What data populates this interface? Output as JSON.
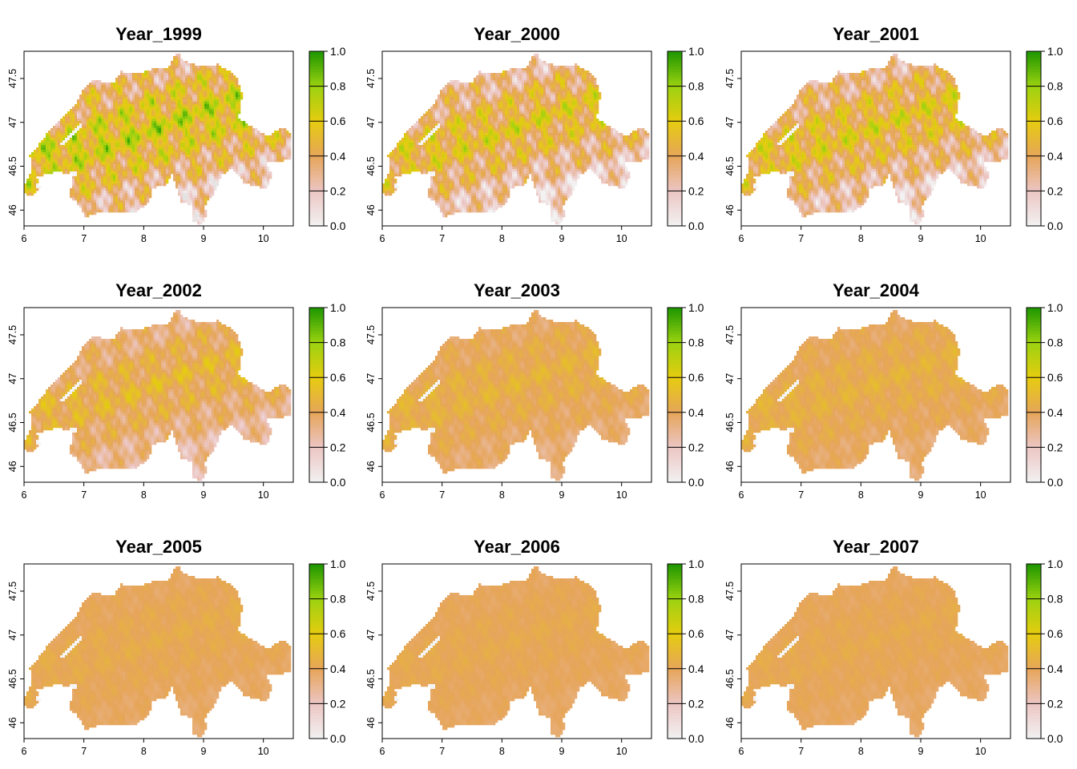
{
  "chart_data": {
    "type": "heatmap",
    "colorbar": {
      "ticks": [
        "0.0",
        "0.2",
        "0.4",
        "0.6",
        "0.8",
        "1.0"
      ],
      "range": [
        0,
        1
      ],
      "colors": [
        "#f2f2f2",
        "#ecc6c4",
        "#e6a55a",
        "#e6cc10",
        "#9cd210",
        "#1e9600"
      ]
    },
    "x_ticks": [
      "6",
      "7",
      "8",
      "9",
      "10"
    ],
    "y_ticks": [
      "46",
      "46.5",
      "47",
      "47.5"
    ],
    "xlim": [
      6,
      10.5
    ],
    "ylim": [
      45.82,
      47.81
    ],
    "missing_color": "#e4e4e4",
    "panels": [
      {
        "title": "Year_1999",
        "mean_value": 0.35,
        "spread": 0.45
      },
      {
        "title": "Year_2000",
        "mean_value": 0.28,
        "spread": 0.4
      },
      {
        "title": "Year_2001",
        "mean_value": 0.3,
        "spread": 0.38
      },
      {
        "title": "Year_2002",
        "mean_value": 0.33,
        "spread": 0.22
      },
      {
        "title": "Year_2003",
        "mean_value": 0.38,
        "spread": 0.12
      },
      {
        "title": "Year_2004",
        "mean_value": 0.39,
        "spread": 0.1
      },
      {
        "title": "Year_2005",
        "mean_value": 0.39,
        "spread": 0.06
      },
      {
        "title": "Year_2006",
        "mean_value": 0.39,
        "spread": 0.05
      },
      {
        "title": "Year_2007",
        "mean_value": 0.39,
        "spread": 0.05
      }
    ]
  }
}
